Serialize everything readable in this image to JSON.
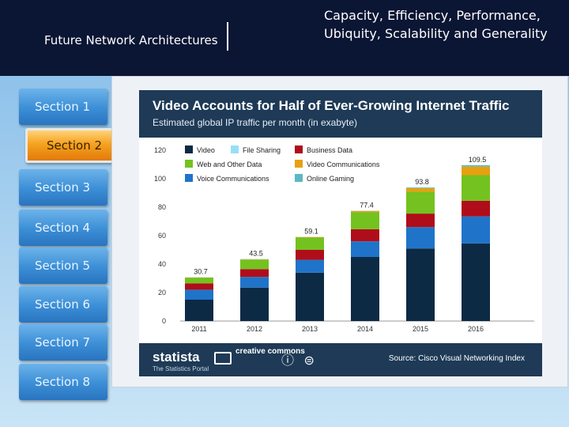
{
  "header": {
    "deck_title": "Future Network Architectures",
    "subtitle": "Capacity, Efficiency, Performance, Ubiquity, Scalability and Generality"
  },
  "nav": {
    "items": [
      {
        "label": "Section 1"
      },
      {
        "label": "Section 2",
        "active": true
      },
      {
        "label": "Section 3"
      },
      {
        "label": "Section 4"
      },
      {
        "label": "Section 5"
      },
      {
        "label": "Section 6"
      },
      {
        "label": "Section 7"
      },
      {
        "label": "Section 8"
      }
    ]
  },
  "footer": {
    "brand": "statista",
    "brand_tagline": "The Statistics Portal",
    "license": "creative commons",
    "license_icons": "ⓘ ⊜",
    "source": "Source: Cisco Visual Networking Index"
  },
  "chart_data": {
    "type": "bar",
    "stacked": true,
    "title": "Video Accounts for Half of Ever-Growing Internet Traffic",
    "subtitle": "Estimated global IP traffic per month (in exabyte)",
    "categories": [
      "2011",
      "2012",
      "2013",
      "2014",
      "2015",
      "2016"
    ],
    "ylim": [
      0,
      120
    ],
    "yticks": [
      0,
      20,
      40,
      60,
      80,
      100,
      120
    ],
    "grid": false,
    "legend_position": "top-left",
    "series": [
      {
        "name": "Video",
        "color": "#0d2a44",
        "values": [
          15.0,
          23.5,
          34.0,
          45.0,
          51.0,
          54.5
        ]
      },
      {
        "name": "Voice Communications",
        "color": "#1f74c9",
        "values": [
          7.0,
          7.5,
          9.0,
          11.0,
          15.0,
          19.0
        ]
      },
      {
        "name": "Business Data",
        "color": "#b00d1a",
        "values": [
          4.5,
          5.5,
          7.0,
          8.5,
          9.5,
          11.0
        ]
      },
      {
        "name": "Web and Other Data",
        "color": "#74c21f",
        "values": [
          4.0,
          6.5,
          8.6,
          11.9,
          15.3,
          18.0
        ]
      },
      {
        "name": "Video Communications",
        "color": "#e8a00f",
        "values": [
          0.1,
          0.3,
          0.4,
          0.8,
          2.5,
          6.0
        ]
      },
      {
        "name": "Online Gaming",
        "color": "#5bb8c4",
        "values": [
          0.1,
          0.2,
          0.1,
          0.2,
          0.5,
          1.0
        ]
      },
      {
        "name": "File Sharing",
        "color": "#98dff5",
        "values": [
          0,
          0,
          0,
          0,
          0,
          0
        ]
      }
    ],
    "legend_order": [
      "Video",
      "File Sharing",
      "Business Data",
      "Web and Other Data",
      "Video Communications",
      "Voice Communications",
      "Online Gaming"
    ],
    "totals": [
      "30.7",
      "43.5",
      "59.1",
      "77.4",
      "93.8",
      "109.5"
    ]
  }
}
